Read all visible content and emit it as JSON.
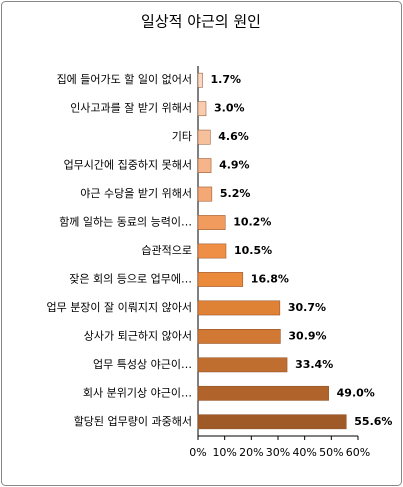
{
  "chart_data": {
    "type": "bar",
    "orientation": "horizontal",
    "title": "일상적 야근의 원인",
    "categories": [
      "집에 들어가도 할 일이 없어서",
      "인사고과를 잘 받기 위해서",
      "기타",
      "업무시간에 집중하지 못해서",
      "야근 수당을 받기 위해서",
      "함께 일하는 동료의 능력이…",
      "습관적으로",
      "잦은 회의 등으로 업무에…",
      "업무 분장이 잘 이뤄지지 않아서",
      "상사가 퇴근하지 않아서",
      "업무 특성상 야근이…",
      "회사 분위기상 야근이…",
      "할당된 업무량이 과중해서"
    ],
    "values": [
      1.7,
      3.0,
      4.6,
      4.9,
      5.2,
      10.2,
      10.5,
      16.8,
      30.7,
      30.9,
      33.4,
      49.0,
      55.6
    ],
    "value_labels": [
      "1.7%",
      "3.0%",
      "4.6%",
      "4.9%",
      "5.2%",
      "10.2%",
      "10.5%",
      "16.8%",
      "30.7%",
      "30.9%",
      "33.4%",
      "49.0%",
      "55.6%"
    ],
    "colors": [
      "#f9d9c6",
      "#f8ccb0",
      "#f6c09c",
      "#f5b48a",
      "#f3a876",
      "#f19c5e",
      "#ef8f45",
      "#ec8a3c",
      "#e08236",
      "#d07834",
      "#c06e30",
      "#b0642c",
      "#a05a28"
    ],
    "xlim": [
      0,
      60
    ],
    "xticks": [
      {
        "value": 0,
        "label": "0%"
      },
      {
        "value": 10,
        "label": "10%"
      },
      {
        "value": 20,
        "label": "20%"
      },
      {
        "value": 30,
        "label": "30%"
      },
      {
        "value": 40,
        "label": "40%"
      },
      {
        "value": 50,
        "label": "50%"
      },
      {
        "value": 60,
        "label": "60%"
      }
    ],
    "grid": false
  }
}
